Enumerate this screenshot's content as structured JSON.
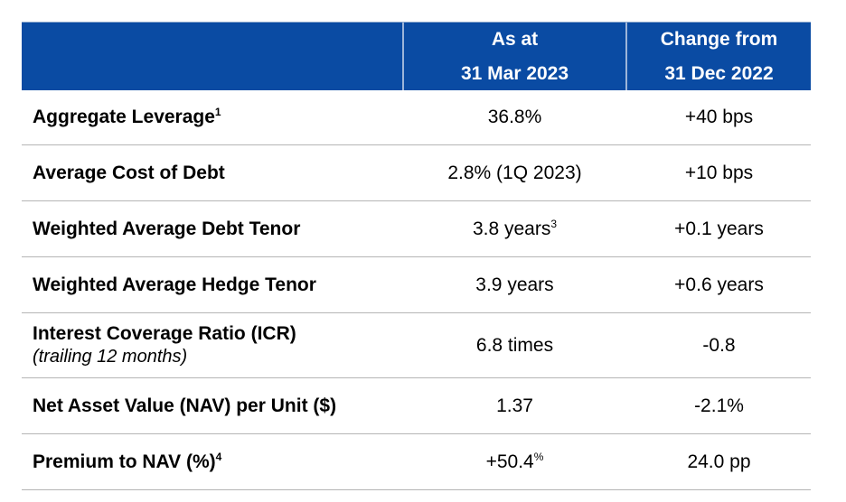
{
  "header": {
    "col1": "",
    "col2_line1": "As at",
    "col2_line2": "31 Mar 2023",
    "col3_line1": "Change from",
    "col3_line2": "31 Dec 2022"
  },
  "rows": [
    {
      "label": "Aggregate Leverage",
      "label_sup": "1",
      "sub": "",
      "value": "36.8%",
      "value_sup": "",
      "change": "+40 bps"
    },
    {
      "label": "Average Cost of Debt",
      "label_sup": "",
      "sub": "",
      "value": "2.8% (1Q 2023)",
      "value_sup": "",
      "change": "+10 bps"
    },
    {
      "label": "Weighted Average Debt Tenor",
      "label_sup": "",
      "sub": "",
      "value": "3.8 years",
      "value_sup": "3",
      "change": "+0.1 years"
    },
    {
      "label": "Weighted Average Hedge Tenor",
      "label_sup": "",
      "sub": "",
      "value": "3.9 years",
      "value_sup": "",
      "change": "+0.6 years"
    },
    {
      "label": "Interest Coverage Ratio (ICR)",
      "label_sup": "",
      "sub": "(trailing 12 months)",
      "value": "6.8 times",
      "value_sup": "",
      "change": "-0.8"
    },
    {
      "label": "Net Asset Value (NAV) per Unit ($)",
      "label_sup": "",
      "sub": "",
      "value": "1.37",
      "value_sup": "",
      "change": "-2.1%"
    },
    {
      "label": "Premium to NAV (%)",
      "label_sup": "4",
      "sub": "",
      "value": "+50.4",
      "value_sup": "%",
      "change": "24.0 pp"
    }
  ],
  "colors": {
    "header_bg": "#0a4ba3",
    "header_text": "#ffffff",
    "row_border": "#b5b5b5"
  }
}
